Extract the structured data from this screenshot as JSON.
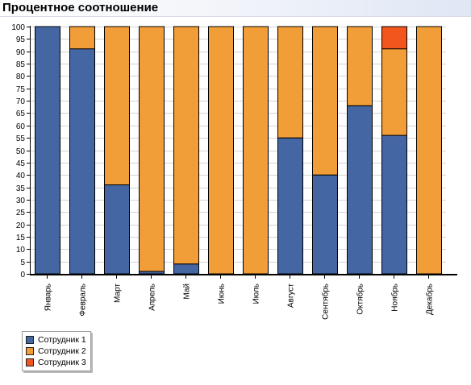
{
  "chart_data": {
    "type": "bar",
    "stacked": true,
    "title": "Процентное соотношение",
    "xlabel": "",
    "ylabel": "",
    "ylim": [
      0,
      100
    ],
    "yticks": [
      0,
      5,
      10,
      15,
      20,
      25,
      30,
      35,
      40,
      45,
      50,
      55,
      60,
      65,
      70,
      75,
      80,
      85,
      90,
      95,
      100
    ],
    "grid": true,
    "legend_position": "bottom-left",
    "categories": [
      "Январь",
      "Февраль",
      "Март",
      "Апрель",
      "Май",
      "Июнь",
      "Июль",
      "Август",
      "Сентябрь",
      "Октябрь",
      "Ноябрь",
      "Декабрь"
    ],
    "series": [
      {
        "name": "Сотрудник 1",
        "color": "#4466a3",
        "values": [
          100,
          91,
          36,
          1,
          4,
          0,
          0,
          55,
          40,
          68,
          56,
          0
        ]
      },
      {
        "name": "Сотрудник 2",
        "color": "#f29e38",
        "values": [
          0,
          9,
          64,
          99,
          96,
          100,
          100,
          45,
          60,
          32,
          35,
          100
        ]
      },
      {
        "name": "Сотрудник 3",
        "color": "#f2561d",
        "values": [
          0,
          0,
          0,
          0,
          0,
          0,
          0,
          0,
          0,
          0,
          9,
          0
        ]
      }
    ]
  }
}
